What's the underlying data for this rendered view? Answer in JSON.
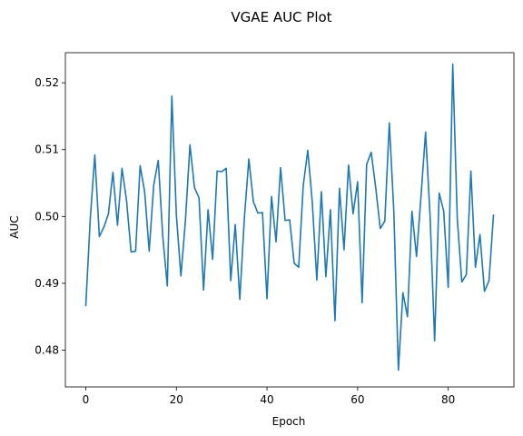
{
  "chart_data": {
    "type": "line",
    "title": "VGAE AUC Plot",
    "xlabel": "Epoch",
    "ylabel": "AUC",
    "xlim": [
      -4.5,
      94.5
    ],
    "ylim": [
      0.4745,
      0.5245
    ],
    "xticks": [
      0,
      20,
      40,
      60,
      80
    ],
    "xtick_labels": [
      "0",
      "20",
      "40",
      "60",
      "80"
    ],
    "yticks": [
      0.48,
      0.49,
      0.5,
      0.51,
      0.52
    ],
    "ytick_labels": [
      "0.48",
      "0.49",
      "0.50",
      "0.51",
      "0.52"
    ],
    "grid": false,
    "legend": "none",
    "series": [
      {
        "color": "#1f77b4",
        "x": [
          0,
          1,
          2,
          3,
          4,
          5,
          6,
          7,
          8,
          9,
          10,
          11,
          12,
          13,
          14,
          15,
          16,
          17,
          18,
          19,
          20,
          21,
          22,
          23,
          24,
          25,
          26,
          27,
          28,
          29,
          30,
          31,
          32,
          33,
          34,
          35,
          36,
          37,
          38,
          39,
          40,
          41,
          42,
          43,
          44,
          45,
          46,
          47,
          48,
          49,
          50,
          51,
          52,
          53,
          54,
          55,
          56,
          57,
          58,
          59,
          60,
          61,
          62,
          63,
          64,
          65,
          66,
          67,
          68,
          69,
          70,
          71,
          72,
          73,
          74,
          75,
          76,
          77,
          78,
          79,
          80,
          81,
          82,
          83,
          84,
          85,
          86,
          87,
          88,
          89,
          90
        ],
        "y": [
          0.4866,
          0.4997,
          0.5092,
          0.497,
          0.4984,
          0.5004,
          0.5066,
          0.4987,
          0.5072,
          0.5024,
          0.4947,
          0.4948,
          0.5076,
          0.5037,
          0.4948,
          0.5047,
          0.5084,
          0.497,
          0.4896,
          0.518,
          0.5002,
          0.4911,
          0.4994,
          0.5107,
          0.5043,
          0.5028,
          0.489,
          0.501,
          0.4936,
          0.5068,
          0.5067,
          0.5072,
          0.4904,
          0.4988,
          0.4876,
          0.4997,
          0.5086,
          0.5022,
          0.5005,
          0.5006,
          0.4877,
          0.503,
          0.4962,
          0.5073,
          0.4994,
          0.4995,
          0.493,
          0.4924,
          0.5046,
          0.5099,
          0.5021,
          0.4905,
          0.5037,
          0.491,
          0.501,
          0.4844,
          0.5042,
          0.495,
          0.5077,
          0.5004,
          0.5052,
          0.4871,
          0.5078,
          0.5096,
          0.5043,
          0.4982,
          0.4993,
          0.514,
          0.5007,
          0.477,
          0.4886,
          0.485,
          0.5008,
          0.494,
          0.5031,
          0.5126,
          0.5,
          0.4814,
          0.5035,
          0.5008,
          0.4894,
          0.5228,
          0.4996,
          0.4902,
          0.4913,
          0.5068,
          0.4924,
          0.4973,
          0.4888,
          0.4904,
          0.5003
        ]
      }
    ]
  }
}
